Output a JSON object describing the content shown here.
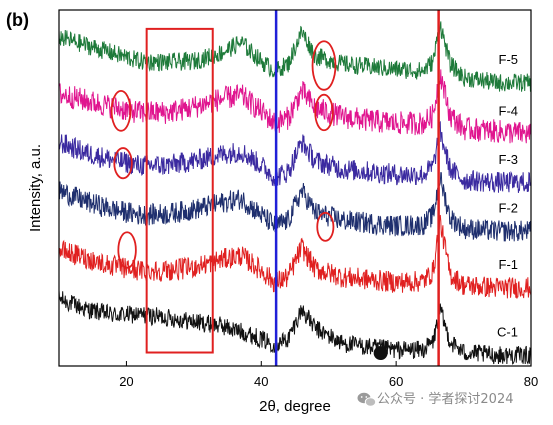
{
  "chart_data": {
    "type": "line",
    "panel_label": "(b)",
    "xlabel": "2θ, degree",
    "ylabel": "Intensity, a.u.",
    "xlim": [
      10,
      80
    ],
    "ylim": [
      0,
      6.6
    ],
    "xticks": [
      20,
      40,
      60,
      80
    ],
    "grid": false,
    "legend": "none",
    "series": [
      {
        "name": "C-1",
        "color": "#111111",
        "offset": 0.0,
        "noise": 0.17,
        "points": [
          [
            10,
            1.25
          ],
          [
            14,
            1.05
          ],
          [
            18,
            0.95
          ],
          [
            22,
            0.95
          ],
          [
            26,
            0.9
          ],
          [
            30,
            0.82
          ],
          [
            34,
            0.75
          ],
          [
            38,
            0.6
          ],
          [
            42,
            0.4
          ],
          [
            44,
            0.5
          ],
          [
            46,
            1.05
          ],
          [
            48,
            0.7
          ],
          [
            52,
            0.42
          ],
          [
            56,
            0.35
          ],
          [
            60,
            0.3
          ],
          [
            64,
            0.3
          ],
          [
            65.5,
            0.45
          ],
          [
            66.5,
            1.05
          ],
          [
            68,
            0.45
          ],
          [
            70,
            0.25
          ],
          [
            75,
            0.2
          ],
          [
            80,
            0.2
          ]
        ]
      },
      {
        "name": "F-1",
        "color": "#e02020",
        "offset": 1.15,
        "noise": 0.2,
        "points": [
          [
            10,
            1.0
          ],
          [
            14,
            0.85
          ],
          [
            18,
            0.7
          ],
          [
            22,
            0.62
          ],
          [
            26,
            0.62
          ],
          [
            30,
            0.68
          ],
          [
            34,
            0.82
          ],
          [
            37,
            0.9
          ],
          [
            40,
            0.62
          ],
          [
            42,
            0.4
          ],
          [
            44,
            0.5
          ],
          [
            46,
            1.05
          ],
          [
            48,
            0.65
          ],
          [
            52,
            0.5
          ],
          [
            56,
            0.45
          ],
          [
            60,
            0.4
          ],
          [
            64,
            0.42
          ],
          [
            65.5,
            0.6
          ],
          [
            66.5,
            1.55
          ],
          [
            68,
            0.55
          ],
          [
            70,
            0.35
          ],
          [
            75,
            0.3
          ],
          [
            80,
            0.3
          ]
        ]
      },
      {
        "name": "F-2",
        "color": "#1f2f6e",
        "offset": 2.2,
        "noise": 0.2,
        "points": [
          [
            10,
            1.05
          ],
          [
            14,
            0.85
          ],
          [
            18,
            0.7
          ],
          [
            22,
            0.6
          ],
          [
            26,
            0.62
          ],
          [
            30,
            0.7
          ],
          [
            34,
            0.82
          ],
          [
            37,
            0.9
          ],
          [
            40,
            0.6
          ],
          [
            42,
            0.4
          ],
          [
            44,
            0.5
          ],
          [
            46,
            1.05
          ],
          [
            48,
            0.65
          ],
          [
            52,
            0.5
          ],
          [
            56,
            0.45
          ],
          [
            60,
            0.4
          ],
          [
            64,
            0.42
          ],
          [
            65.5,
            0.6
          ],
          [
            66.5,
            1.3
          ],
          [
            68,
            0.55
          ],
          [
            70,
            0.35
          ],
          [
            75,
            0.3
          ],
          [
            80,
            0.3
          ]
        ]
      },
      {
        "name": "F-3",
        "color": "#3b2aa0",
        "offset": 3.1,
        "noise": 0.2,
        "points": [
          [
            10,
            1.05
          ],
          [
            14,
            0.85
          ],
          [
            18,
            0.72
          ],
          [
            22,
            0.62
          ],
          [
            26,
            0.62
          ],
          [
            30,
            0.7
          ],
          [
            34,
            0.82
          ],
          [
            37,
            0.88
          ],
          [
            40,
            0.62
          ],
          [
            42,
            0.4
          ],
          [
            44,
            0.5
          ],
          [
            46,
            1.05
          ],
          [
            48,
            0.7
          ],
          [
            52,
            0.55
          ],
          [
            56,
            0.5
          ],
          [
            60,
            0.45
          ],
          [
            64,
            0.45
          ],
          [
            65.5,
            0.6
          ],
          [
            66.5,
            1.25
          ],
          [
            68,
            0.55
          ],
          [
            70,
            0.35
          ],
          [
            75,
            0.3
          ],
          [
            80,
            0.3
          ]
        ]
      },
      {
        "name": "F-4",
        "color": "#e0158f",
        "offset": 4.1,
        "noise": 0.22,
        "points": [
          [
            10,
            0.95
          ],
          [
            14,
            0.82
          ],
          [
            18,
            0.7
          ],
          [
            22,
            0.6
          ],
          [
            26,
            0.6
          ],
          [
            30,
            0.7
          ],
          [
            34,
            0.85
          ],
          [
            37,
            0.92
          ],
          [
            40,
            0.62
          ],
          [
            42,
            0.4
          ],
          [
            44,
            0.5
          ],
          [
            46,
            1.0
          ],
          [
            48,
            0.68
          ],
          [
            52,
            0.52
          ],
          [
            56,
            0.45
          ],
          [
            60,
            0.4
          ],
          [
            64,
            0.4
          ],
          [
            65.5,
            0.55
          ],
          [
            66.5,
            1.35
          ],
          [
            68,
            0.55
          ],
          [
            70,
            0.3
          ],
          [
            75,
            0.25
          ],
          [
            80,
            0.2
          ]
        ]
      },
      {
        "name": "F-5",
        "color": "#1e7a3a",
        "offset": 5.05,
        "noise": 0.17,
        "points": [
          [
            10,
            1.05
          ],
          [
            14,
            0.9
          ],
          [
            18,
            0.75
          ],
          [
            22,
            0.6
          ],
          [
            26,
            0.58
          ],
          [
            30,
            0.6
          ],
          [
            34,
            0.75
          ],
          [
            37,
            0.95
          ],
          [
            40,
            0.6
          ],
          [
            42,
            0.42
          ],
          [
            44,
            0.55
          ],
          [
            46,
            1.15
          ],
          [
            48,
            0.7
          ],
          [
            52,
            0.55
          ],
          [
            56,
            0.5
          ],
          [
            60,
            0.45
          ],
          [
            64,
            0.42
          ],
          [
            65.5,
            0.6
          ],
          [
            66.5,
            1.3
          ],
          [
            68,
            0.55
          ],
          [
            70,
            0.3
          ],
          [
            75,
            0.2
          ],
          [
            80,
            0.2
          ]
        ]
      }
    ],
    "annotations": {
      "vertical_lines": [
        {
          "x": 42.2,
          "color": "#2020d8"
        },
        {
          "x": 66.3,
          "color": "#e02020"
        }
      ],
      "rectangles": [
        {
          "x0": 23,
          "x1": 32.8,
          "y0": 0.25,
          "y1": 6.25,
          "color": "#e02020"
        }
      ],
      "ellipses": [
        {
          "cx": 49.3,
          "cy": 5.57,
          "rx": 1.7,
          "ry": 0.45,
          "color": "#e02020"
        },
        {
          "cx": 49.3,
          "cy": 4.7,
          "rx": 1.3,
          "ry": 0.33,
          "color": "#e02020"
        },
        {
          "cx": 19.2,
          "cy": 4.73,
          "rx": 1.4,
          "ry": 0.37,
          "color": "#e02020"
        },
        {
          "cx": 19.5,
          "cy": 3.76,
          "rx": 1.3,
          "ry": 0.28,
          "color": "#e02020"
        },
        {
          "cx": 49.5,
          "cy": 2.58,
          "rx": 1.2,
          "ry": 0.26,
          "color": "#e02020"
        },
        {
          "cx": 20.1,
          "cy": 2.15,
          "rx": 1.3,
          "ry": 0.33,
          "color": "#e02020"
        }
      ],
      "markers": [
        {
          "x": 57.7,
          "y": 0.24,
          "shape": "filled-circle",
          "color": "#111111"
        }
      ]
    }
  },
  "watermark": {
    "text": "公众号 · 学者探讨2024",
    "icon": "wechat-icon"
  }
}
